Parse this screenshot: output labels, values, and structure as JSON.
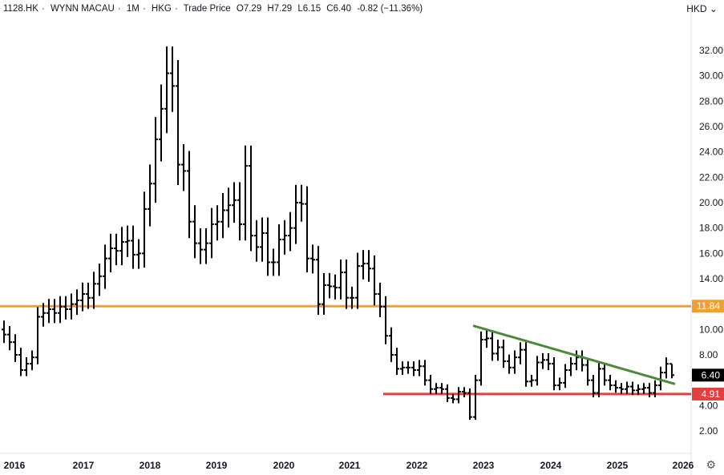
{
  "header": {
    "symbol": "1128.HK",
    "name": "WYNN MACAU",
    "interval": "1M",
    "exchange": "HKG",
    "price_type": "Trade Price",
    "open": "O7.29",
    "high": "H7.29",
    "low": "L6.15",
    "close": "C6.40",
    "change": "-0.82 (−11.36%)",
    "separator": "·"
  },
  "currency": "HKD ⌄",
  "settings_icon": "gear-icon",
  "chart_data": {
    "type": "ohlc",
    "title": "1128.HK WYNN MACAU 1M",
    "start_month": "2015-11",
    "interval": "monthly",
    "close": [
      9.6,
      9.0,
      8.0,
      6.8,
      7.3,
      7.8,
      11.0,
      11.3,
      11.6,
      11.3,
      11.8,
      11.6,
      12.0,
      12.3,
      12.8,
      12.5,
      13.6,
      14.2,
      15.6,
      16.4,
      16.2,
      16.9,
      17.0,
      15.9,
      16.0,
      19.5,
      21.5,
      25.0,
      27.4,
      30.2,
      29.2,
      23.0,
      22.5,
      18.5,
      16.8,
      16.3,
      16.8,
      18.3,
      18.5,
      19.4,
      19.8,
      20.2,
      18.3,
      22.9,
      17.4,
      16.5,
      17.6,
      15.3,
      15.3,
      17.1,
      17.4,
      18.0,
      20.0,
      19.9,
      15.6,
      15.5,
      12.0,
      13.5,
      13.4,
      13.3,
      14.5,
      12.5,
      12.5,
      15.0,
      15.2,
      14.8,
      12.8,
      11.8,
      9.5,
      8.0,
      6.9,
      7.0,
      7.0,
      6.8,
      7.1,
      6.0,
      5.3,
      5.4,
      5.3,
      4.6,
      4.5,
      5.1,
      5.0,
      3.1,
      6.0,
      9.2,
      9.3,
      8.1,
      8.6,
      7.5,
      7.0,
      7.8,
      8.4,
      5.9,
      6.0,
      7.4,
      7.6,
      7.3,
      5.6,
      5.8,
      6.8,
      7.3,
      7.8,
      7.2,
      6.0,
      5.0,
      6.9,
      6.0,
      5.6,
      5.4,
      5.3,
      5.5,
      5.2,
      5.3,
      5.4,
      5.0,
      5.6,
      6.6,
      7.29,
      6.4
    ],
    "first_open": 10.0,
    "wick_pct": 0.07,
    "last_bar": {
      "o": 7.29,
      "h": 7.29,
      "l": 6.15,
      "c": 6.4
    },
    "x_ticks": [
      "2016",
      "2017",
      "2018",
      "2019",
      "2020",
      "2021",
      "2022",
      "2023",
      "2024",
      "2025",
      "2026"
    ],
    "y_ticks": [
      "32.00",
      "30.00",
      "28.00",
      "26.00",
      "24.00",
      "22.00",
      "20.00",
      "18.00",
      "16.00",
      "14.00",
      "10.00",
      "8.00",
      "4.00",
      "2.00"
    ],
    "y_tick_values": [
      32,
      30,
      28,
      26,
      24,
      22,
      20,
      18,
      16,
      14,
      10,
      8,
      4,
      2
    ],
    "ylim": [
      0,
      34
    ],
    "levels": [
      {
        "name": "resistance",
        "value": 11.84,
        "label": "11.84",
        "color": "#f0a030"
      },
      {
        "name": "support",
        "value": 4.91,
        "label": "4.91",
        "color": "#e0403f"
      }
    ],
    "trendline": {
      "from": {
        "month": "2022-11",
        "value": 10.3
      },
      "to": {
        "month": "2025-11",
        "value": 5.7
      },
      "color": "#4a8a3a"
    },
    "last_price": {
      "value": 6.4,
      "label": "6.40",
      "color": "#000000"
    }
  }
}
